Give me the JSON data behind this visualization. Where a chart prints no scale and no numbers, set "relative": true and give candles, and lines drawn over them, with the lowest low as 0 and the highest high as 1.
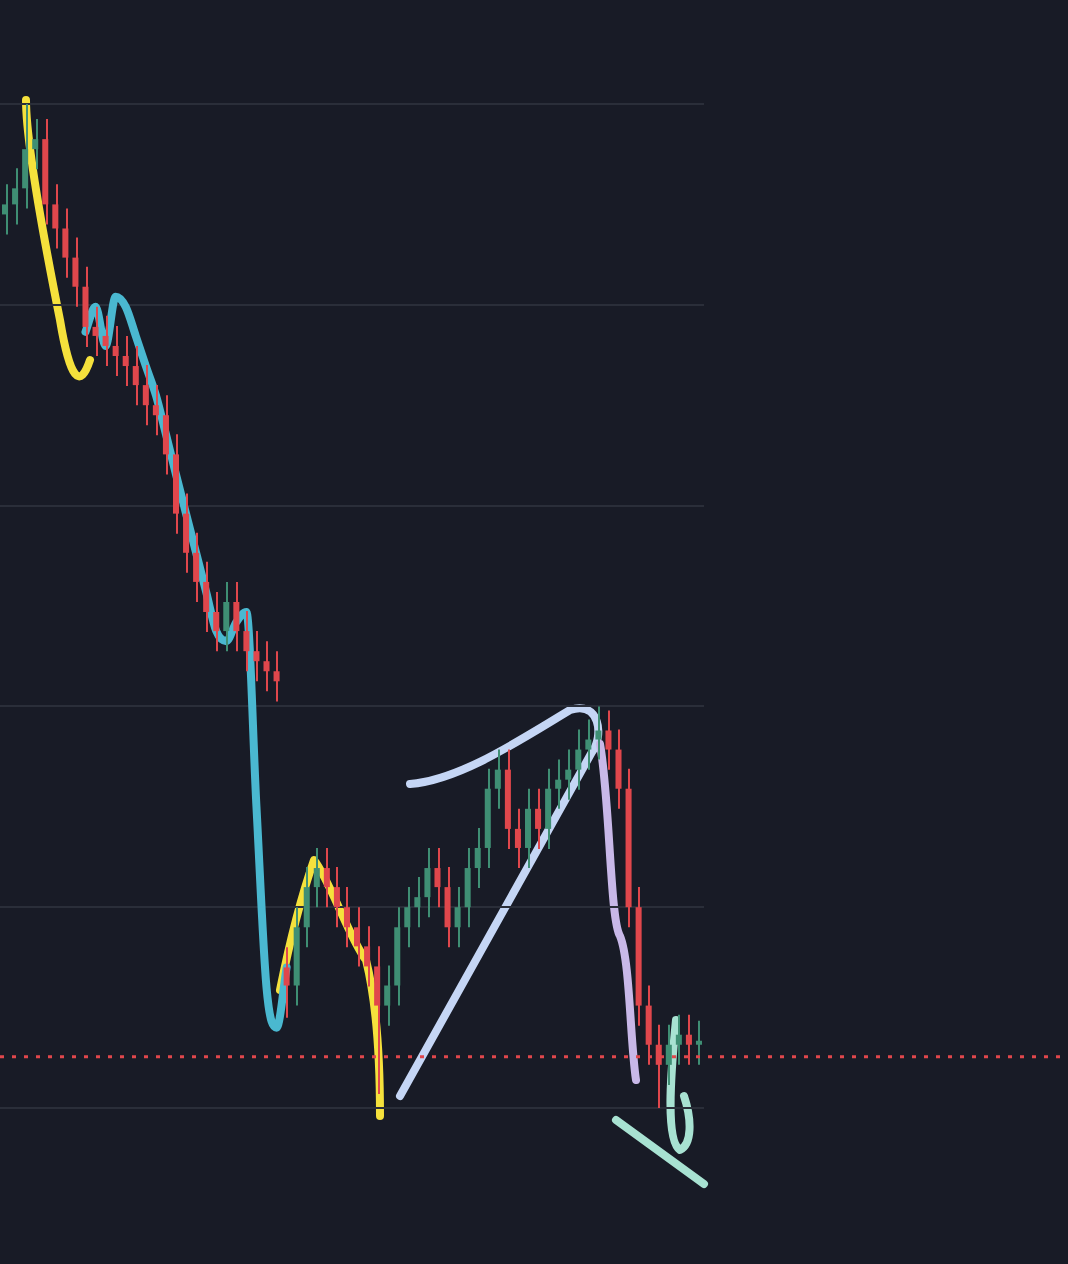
{
  "chart_data": {
    "type": "candlestick",
    "relative": true,
    "grid": "y",
    "legend": false,
    "marker": "none",
    "categories": [
      null,
      null,
      null,
      null,
      null,
      null,
      null,
      null,
      null,
      null,
      null,
      null,
      null,
      null,
      null,
      null,
      null,
      null,
      null,
      null,
      null,
      null,
      null,
      null,
      null,
      null,
      null,
      null,
      null,
      null,
      null,
      null,
      null,
      null,
      null,
      null,
      null,
      null,
      null,
      null,
      null,
      null,
      null,
      null,
      null,
      null,
      null,
      null,
      null,
      null,
      null,
      null,
      null,
      null,
      null,
      null,
      null,
      null,
      null,
      null,
      null,
      null,
      null,
      null,
      null,
      null,
      null,
      null,
      null,
      null
    ],
    "series": [
      {
        "colors": [
          "#3f8f74",
          "#3f8f74",
          "#3f8f74",
          "#3f8f74",
          "#e0474c",
          "#e0474c",
          "#e0474c",
          "#e0474c",
          "#e0474c",
          "#e0474c",
          "#e0474c",
          "#e0474c",
          "#e0474c",
          "#e0474c",
          "#e0474c",
          "#e0474c",
          "#e0474c",
          "#e0474c",
          "#e0474c",
          "#e0474c",
          "#e0474c",
          "#e0474c",
          "#3f8f74",
          "#e0474c",
          "#e0474c",
          "#e0474c",
          "#e0474c",
          "#e0474c",
          "#e0474c",
          "#3f8f74",
          "#3f8f74",
          "#3f8f74",
          "#e0474c",
          "#e0474c",
          "#e0474c",
          "#e0474c",
          "#e0474c",
          "#e0474c",
          "#3f8f74",
          "#3f8f74",
          "#3f8f74",
          "#3f8f74",
          "#3f8f74",
          "#e0474c",
          "#e0474c",
          "#3f8f74",
          "#3f8f74",
          "#3f8f74",
          "#3f8f74",
          "#3f8f74",
          "#e0474c",
          "#e0474c",
          "#3f8f74",
          "#e0474c",
          "#3f8f74",
          "#3f8f74",
          "#3f8f74",
          "#3f8f74",
          "#3f8f74",
          "#3f8f74",
          "#e0474c",
          "#e0474c",
          "#e0474c",
          "#e0474c",
          "#e0474c",
          "#e0474c",
          "#3f8f74",
          "#3f8f74",
          "#e0474c",
          "#3f8f74"
        ],
        "ohlc": [
          [
            0.89,
            0.92,
            0.87,
            0.9
          ],
          [
            0.9,
            0.936,
            0.88,
            0.916
          ],
          [
            0.916,
            1,
            0.896,
            0.955
          ],
          [
            0.955,
            0.985,
            0.935,
            0.965
          ],
          [
            0.965,
            0.985,
            0.88,
            0.9
          ],
          [
            0.9,
            0.92,
            0.856,
            0.876
          ],
          [
            0.876,
            0.896,
            0.827,
            0.847
          ],
          [
            0.847,
            0.867,
            0.798,
            0.818
          ],
          [
            0.818,
            0.838,
            0.758,
            0.778
          ],
          [
            0.778,
            0.798,
            0.749,
            0.769
          ],
          [
            0.769,
            0.789,
            0.739,
            0.759
          ],
          [
            0.759,
            0.779,
            0.729,
            0.749
          ],
          [
            0.749,
            0.769,
            0.719,
            0.739
          ],
          [
            0.739,
            0.759,
            0.7,
            0.72
          ],
          [
            0.72,
            0.74,
            0.68,
            0.7
          ],
          [
            0.7,
            0.72,
            0.67,
            0.69
          ],
          [
            0.69,
            0.71,
            0.631,
            0.651
          ],
          [
            0.651,
            0.671,
            0.572,
            0.592
          ],
          [
            0.592,
            0.612,
            0.533,
            0.553
          ],
          [
            0.553,
            0.573,
            0.504,
            0.524
          ],
          [
            0.524,
            0.544,
            0.474,
            0.494
          ],
          [
            0.494,
            0.514,
            0.455,
            0.475
          ],
          [
            0.475,
            0.524,
            0.455,
            0.504
          ],
          [
            0.504,
            0.524,
            0.455,
            0.475
          ],
          [
            0.475,
            0.495,
            0.435,
            0.455
          ],
          [
            0.455,
            0.475,
            0.425,
            0.445
          ],
          [
            0.445,
            0.465,
            0.415,
            0.435
          ],
          [
            0.435,
            0.455,
            0.405,
            0.425
          ],
          [
            0.14,
            0.16,
            0.09,
            0.122
          ],
          [
            0.122,
            0.2,
            0.102,
            0.18
          ],
          [
            0.18,
            0.24,
            0.16,
            0.22
          ],
          [
            0.22,
            0.259,
            0.2,
            0.239
          ],
          [
            0.239,
            0.259,
            0.2,
            0.22
          ],
          [
            0.22,
            0.24,
            0.18,
            0.2
          ],
          [
            0.2,
            0.22,
            0.16,
            0.18
          ],
          [
            0.18,
            0.2,
            0.141,
            0.161
          ],
          [
            0.161,
            0.181,
            0.121,
            0.141
          ],
          [
            0.141,
            0.161,
            0.014,
            0.102
          ],
          [
            0.102,
            0.142,
            0.082,
            0.122
          ],
          [
            0.122,
            0.2,
            0.102,
            0.18
          ],
          [
            0.18,
            0.22,
            0.16,
            0.2
          ],
          [
            0.2,
            0.23,
            0.18,
            0.21
          ],
          [
            0.21,
            0.259,
            0.19,
            0.239
          ],
          [
            0.239,
            0.259,
            0.2,
            0.22
          ],
          [
            0.22,
            0.24,
            0.16,
            0.18
          ],
          [
            0.18,
            0.22,
            0.16,
            0.2
          ],
          [
            0.2,
            0.259,
            0.18,
            0.239
          ],
          [
            0.239,
            0.279,
            0.219,
            0.259
          ],
          [
            0.259,
            0.338,
            0.239,
            0.318
          ],
          [
            0.318,
            0.357,
            0.298,
            0.337
          ],
          [
            0.337,
            0.357,
            0.258,
            0.278
          ],
          [
            0.278,
            0.298,
            0.239,
            0.259
          ],
          [
            0.259,
            0.318,
            0.239,
            0.298
          ],
          [
            0.298,
            0.318,
            0.258,
            0.278
          ],
          [
            0.278,
            0.338,
            0.258,
            0.318
          ],
          [
            0.318,
            0.347,
            0.298,
            0.327
          ],
          [
            0.327,
            0.357,
            0.307,
            0.337
          ],
          [
            0.337,
            0.377,
            0.317,
            0.357
          ],
          [
            0.357,
            0.387,
            0.337,
            0.367
          ],
          [
            0.367,
            0.4,
            0.347,
            0.376
          ],
          [
            0.376,
            0.396,
            0.337,
            0.357
          ],
          [
            0.357,
            0.377,
            0.298,
            0.318
          ],
          [
            0.318,
            0.338,
            0.18,
            0.2
          ],
          [
            0.2,
            0.22,
            0.082,
            0.102
          ],
          [
            0.102,
            0.122,
            0.043,
            0.063
          ],
          [
            0.063,
            0.083,
            0,
            0.043
          ],
          [
            0.043,
            0.083,
            0.023,
            0.063
          ],
          [
            0.063,
            0.093,
            0.043,
            0.073
          ],
          [
            0.073,
            0.093,
            0.043,
            0.063
          ],
          [
            0.063,
            0.087,
            0.043,
            0.067
          ]
        ]
      },
      {
        "type": "line",
        "color": "#4ab8d0",
        "values": [
          null,
          null,
          null,
          null,
          null,
          null,
          null,
          null,
          0.773,
          0.798,
          0.759,
          0.808,
          0.798,
          0.769,
          0.739,
          0.71,
          0.671,
          0.631,
          0.592,
          0.553,
          0.514,
          0.475,
          0.465,
          0.484,
          0.494,
          0.3,
          0.12,
          0.08,
          0.14,
          null,
          null,
          null,
          null,
          null,
          null,
          null,
          null,
          null,
          null,
          null,
          null,
          null,
          null,
          null,
          null,
          null,
          null,
          null,
          null,
          null,
          null,
          null,
          null,
          null,
          null,
          null,
          null,
          null,
          null,
          null,
          null,
          null,
          null,
          null,
          null,
          null,
          null,
          null,
          null,
          null
        ]
      }
    ],
    "ref_lines": [
      {
        "axis": "y",
        "value": 0.051,
        "color": "#e0474c",
        "line_style": "dotted"
      }
    ]
  }
}
